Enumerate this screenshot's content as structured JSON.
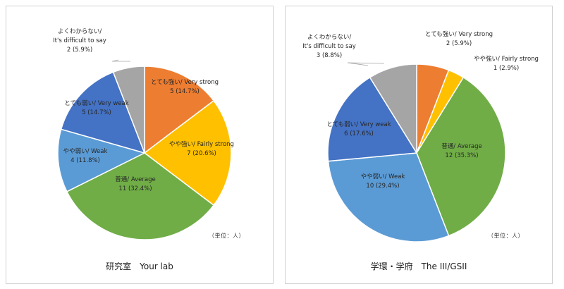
{
  "chart_data": [
    {
      "type": "pie",
      "caption": "研究室　Your lab",
      "unit_note": "（単位：人）",
      "slices": [
        {
          "lines": [
            "とても強い/ Very strong"
          ],
          "count": 5,
          "pct": "14.7%",
          "color": "#ed7d31"
        },
        {
          "lines": [
            "やや強い/ Fairly strong"
          ],
          "count": 7,
          "pct": "20.6%",
          "color": "#ffc000"
        },
        {
          "lines": [
            "普通/ Average"
          ],
          "count": 11,
          "pct": "32.4%",
          "color": "#70ad47"
        },
        {
          "lines": [
            "やや弱い/ Weak"
          ],
          "count": 4,
          "pct": "11.8%",
          "color": "#5b9bd5"
        },
        {
          "lines": [
            "とても弱い/ Very weak"
          ],
          "count": 5,
          "pct": "14.7%",
          "color": "#4472c4"
        },
        {
          "lines": [
            "よくわからない/",
            "It's difficult to say"
          ],
          "count": 2,
          "pct": "5.9%",
          "color": "#a5a5a5"
        }
      ]
    },
    {
      "type": "pie",
      "caption": "学環・学府　The III/GSII",
      "unit_note": "（単位：人）",
      "slices": [
        {
          "lines": [
            "とても強い/ Very strong"
          ],
          "count": 2,
          "pct": "5.9%",
          "color": "#ed7d31"
        },
        {
          "lines": [
            "やや強い/ Fairly strong"
          ],
          "count": 1,
          "pct": "2.9%",
          "color": "#ffc000"
        },
        {
          "lines": [
            "普通/ Average"
          ],
          "count": 12,
          "pct": "35.3%",
          "color": "#70ad47"
        },
        {
          "lines": [
            "やや弱い/ Weak"
          ],
          "count": 10,
          "pct": "29.4%",
          "color": "#5b9bd5"
        },
        {
          "lines": [
            "とても弱い/ Very weak"
          ],
          "count": 6,
          "pct": "17.6%",
          "color": "#4472c4"
        },
        {
          "lines": [
            "よくわからない/",
            "It's difficult to say"
          ],
          "count": 3,
          "pct": "8.8%",
          "color": "#a5a5a5"
        }
      ]
    }
  ]
}
